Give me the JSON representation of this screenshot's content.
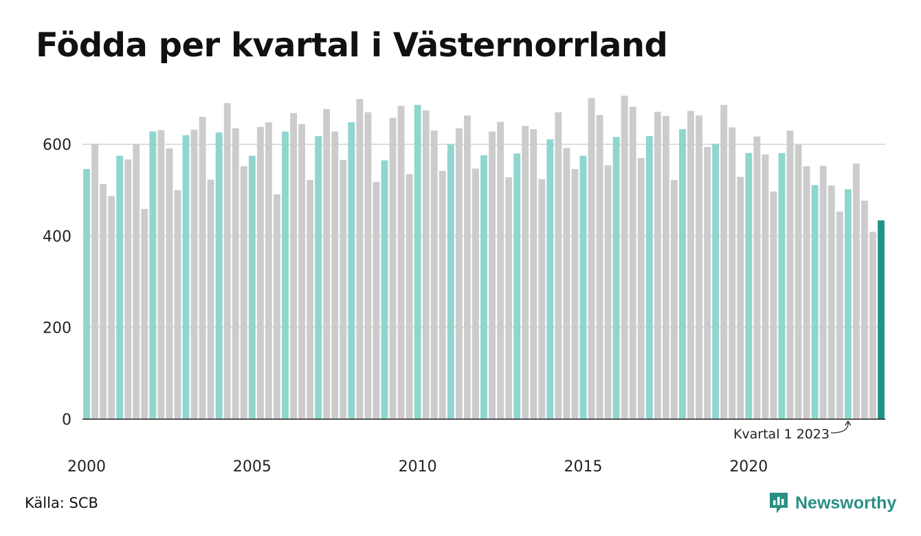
{
  "title": "Födda per kvartal i Västernorrland",
  "source": "Källa: SCB",
  "brand": {
    "name": "Newsworthy",
    "icon": "newsworthy-logo-icon"
  },
  "colors": {
    "highlight": "#8ed6ce",
    "normal": "#cccccc",
    "latest": "#1f9585",
    "axis": "#222222",
    "grid": "#dddddd",
    "brand": "#2a8f85"
  },
  "chart_data": {
    "type": "bar",
    "title": "Födda per kvartal i Västernorrland",
    "xlabel": "",
    "ylabel": "",
    "ylim": [
      0,
      700
    ],
    "yticks": [
      0,
      200,
      400,
      600
    ],
    "grid": true,
    "x_tick_labels": [
      "2000",
      "2005",
      "2010",
      "2015",
      "2020"
    ],
    "highlighted_quarter": "Q1 (teal bars)",
    "annotation": {
      "text": "Kvartal 1 2023",
      "target_index": 92
    },
    "categories": [
      "2000 K1",
      "2000 K2",
      "2000 K3",
      "2000 K4",
      "2001 K1",
      "2001 K2",
      "2001 K3",
      "2001 K4",
      "2002 K1",
      "2002 K2",
      "2002 K3",
      "2002 K4",
      "2003 K1",
      "2003 K2",
      "2003 K3",
      "2003 K4",
      "2004 K1",
      "2004 K2",
      "2004 K3",
      "2004 K4",
      "2005 K1",
      "2005 K2",
      "2005 K3",
      "2005 K4",
      "2006 K1",
      "2006 K2",
      "2006 K3",
      "2006 K4",
      "2007 K1",
      "2007 K2",
      "2007 K3",
      "2007 K4",
      "2008 K1",
      "2008 K2",
      "2008 K3",
      "2008 K4",
      "2009 K1",
      "2009 K2",
      "2009 K3",
      "2009 K4",
      "2010 K1",
      "2010 K2",
      "2010 K3",
      "2010 K4",
      "2011 K1",
      "2011 K2",
      "2011 K3",
      "2011 K4",
      "2012 K1",
      "2012 K2",
      "2012 K3",
      "2012 K4",
      "2013 K1",
      "2013 K2",
      "2013 K3",
      "2013 K4",
      "2014 K1",
      "2014 K2",
      "2014 K3",
      "2014 K4",
      "2015 K1",
      "2015 K2",
      "2015 K3",
      "2015 K4",
      "2016 K1",
      "2016 K2",
      "2016 K3",
      "2016 K4",
      "2017 K1",
      "2017 K2",
      "2017 K3",
      "2017 K4",
      "2018 K1",
      "2018 K2",
      "2018 K3",
      "2018 K4",
      "2019 K1",
      "2019 K2",
      "2019 K3",
      "2019 K4",
      "2020 K1",
      "2020 K2",
      "2020 K3",
      "2020 K4",
      "2021 K1",
      "2021 K2",
      "2021 K3",
      "2021 K4",
      "2022 K1",
      "2022 K2",
      "2022 K3",
      "2022 K4",
      "2023 K1",
      "2023 K2",
      "2023 K3",
      "2023 K4",
      "2024 K1"
    ],
    "values": [
      546,
      601,
      513,
      487,
      575,
      567,
      600,
      459,
      628,
      631,
      591,
      500,
      620,
      632,
      660,
      523,
      626,
      690,
      635,
      552,
      575,
      638,
      648,
      491,
      628,
      668,
      644,
      522,
      618,
      677,
      628,
      566,
      648,
      699,
      670,
      518,
      565,
      658,
      684,
      535,
      686,
      674,
      630,
      542,
      600,
      635,
      663,
      547,
      576,
      628,
      649,
      528,
      580,
      640,
      633,
      524,
      611,
      670,
      592,
      546,
      575,
      701,
      664,
      554,
      616,
      706,
      682,
      570,
      618,
      671,
      662,
      522,
      633,
      673,
      663,
      594,
      601,
      686,
      637,
      529,
      581,
      617,
      578,
      497,
      581,
      630,
      599,
      552,
      511,
      553,
      510,
      453,
      502,
      558,
      477,
      409,
      434
    ]
  }
}
